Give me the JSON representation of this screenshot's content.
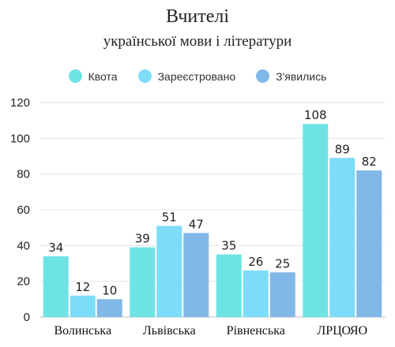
{
  "chart_data": {
    "type": "bar",
    "title": "Вчителі",
    "subtitle": "української мови і літератури",
    "categories": [
      "Волинська",
      "Львівська",
      "Рівненська",
      "ЛРЦОЯО"
    ],
    "series": [
      {
        "name": "Квота",
        "color": "#6ee3e6",
        "values": [
          34,
          39,
          35,
          108
        ]
      },
      {
        "name": "Зареєстровано",
        "color": "#7ddcf8",
        "values": [
          12,
          51,
          26,
          89
        ]
      },
      {
        "name": "З'явились",
        "color": "#80b8e8",
        "values": [
          10,
          47,
          25,
          82
        ]
      }
    ],
    "yticks": [
      0,
      20,
      40,
      60,
      80,
      100,
      120
    ],
    "ylim": [
      0,
      120
    ],
    "legend_position": "top",
    "grid": true
  }
}
